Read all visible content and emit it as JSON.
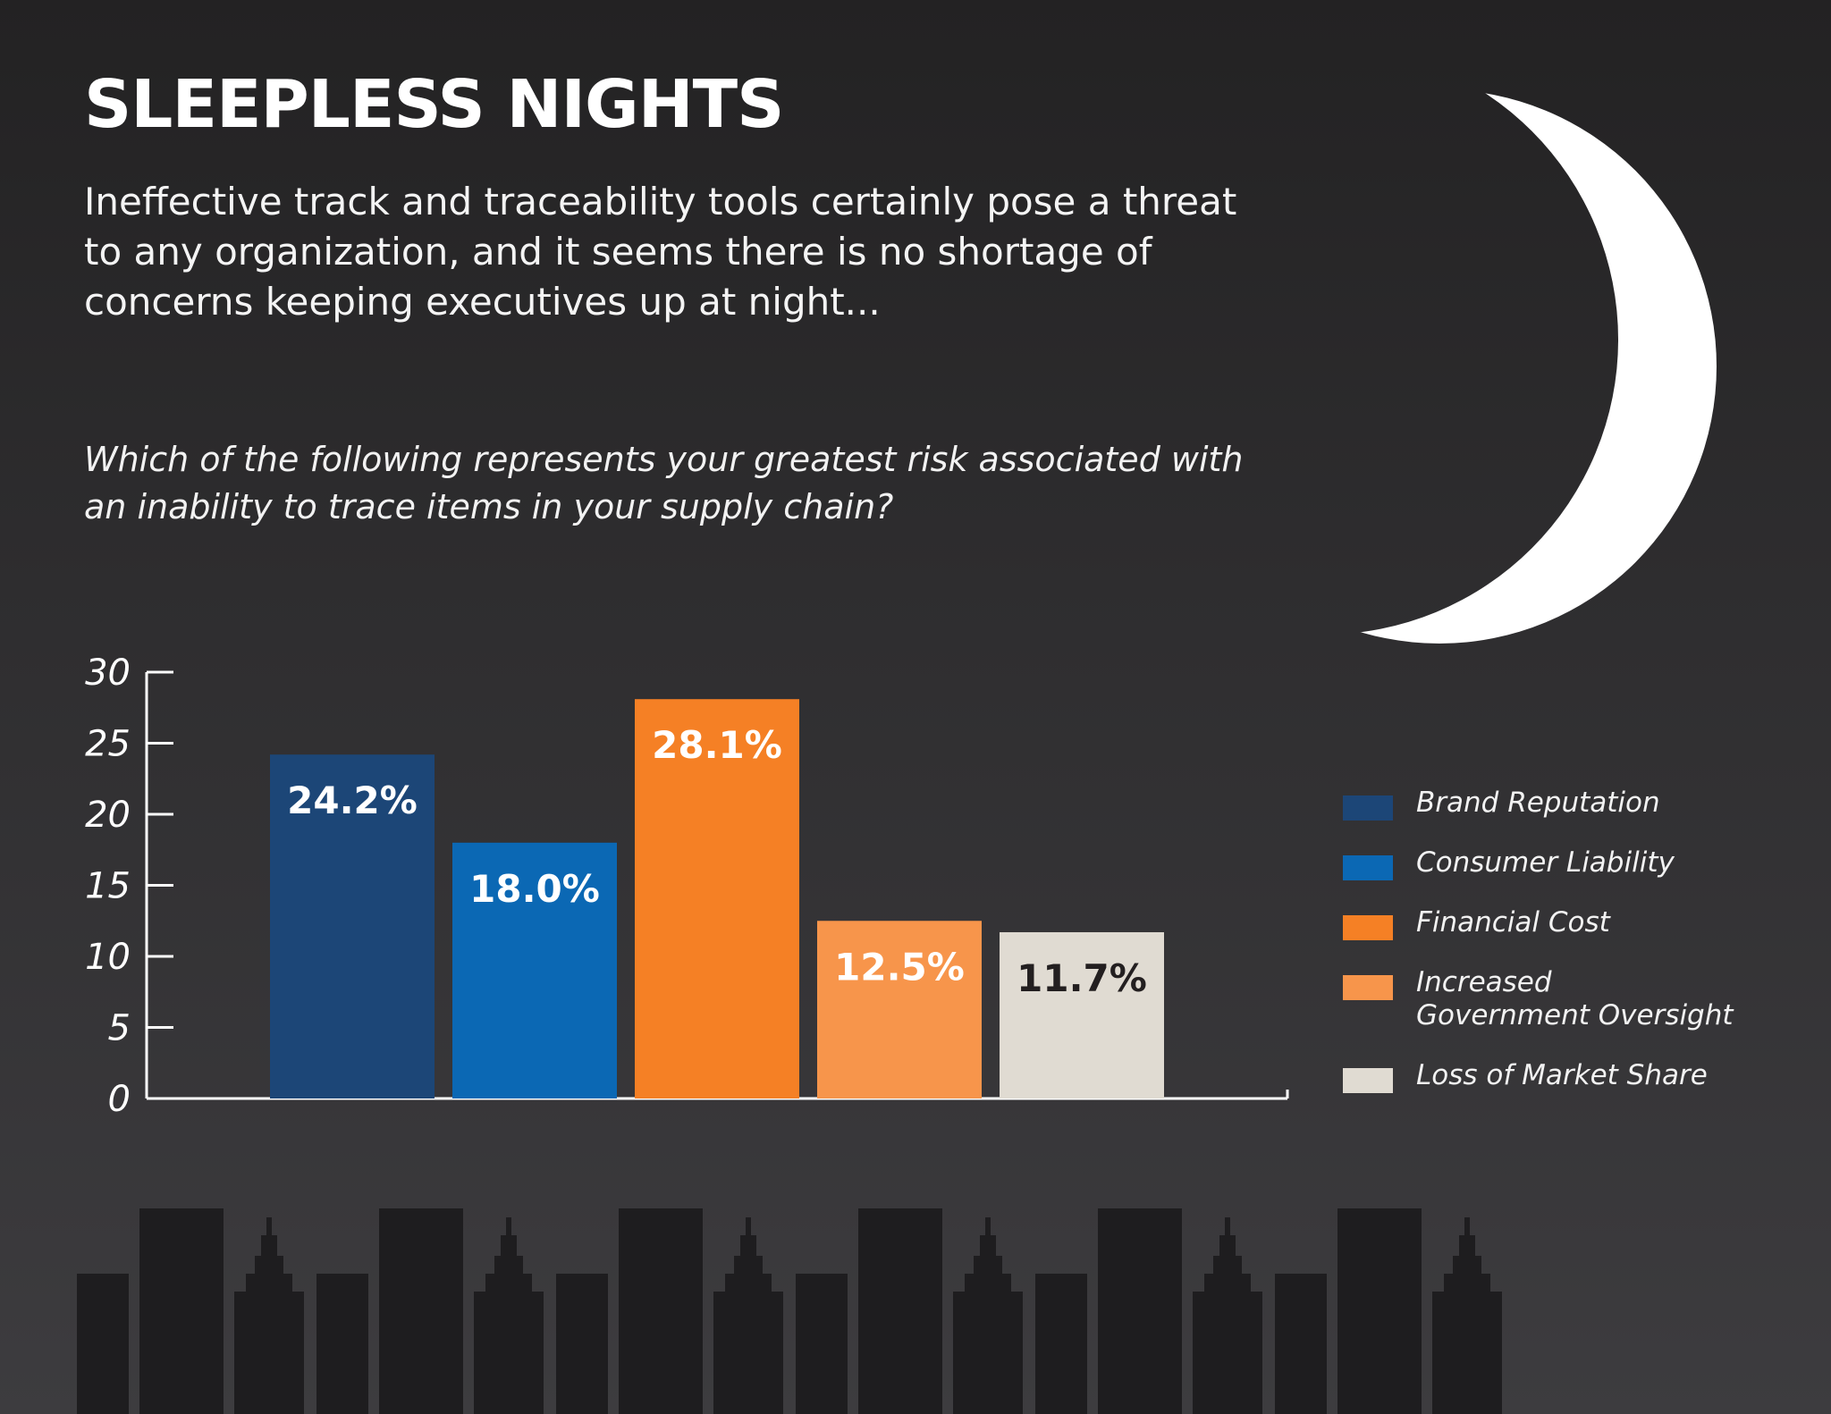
{
  "title": "SLEEPLESS NIGHTS",
  "intro": "Ineffective track and traceability tools certainly pose a threat to any organization, and it seems there is no shortage of concerns keeping executives up at night...",
  "question": "Which of the following represents your greatest risk associated with an inability to trace items in your supply chain?",
  "chart_data": {
    "type": "bar",
    "categories": [
      "Brand Reputation",
      "Consumer Liability",
      "Financial Cost",
      "Increased\nGovernment Oversight",
      "Loss of Market Share"
    ],
    "values": [
      24.2,
      18.0,
      28.1,
      12.5,
      11.7
    ],
    "value_labels": [
      "24.2%",
      "18.0%",
      "28.1%",
      "12.5%",
      "11.7%"
    ],
    "colors": [
      "#1c4677",
      "#0b68b4",
      "#f58025",
      "#f7954b",
      "#e0dbd2"
    ],
    "label_colors": [
      "#ffffff",
      "#ffffff",
      "#ffffff",
      "#ffffff",
      "#231f20"
    ],
    "yticks": [
      0,
      5,
      10,
      15,
      20,
      25,
      30
    ],
    "ylim": [
      0,
      30
    ],
    "grid": false,
    "legend_position": "right"
  },
  "legend": [
    {
      "label": "Brand Reputation",
      "color": "#1c4677"
    },
    {
      "label": "Consumer Liability",
      "color": "#0b68b4"
    },
    {
      "label": "Financial Cost",
      "color": "#f58025"
    },
    {
      "label": "Increased\nGovernment Oversight",
      "color": "#f7954b"
    },
    {
      "label": "Loss of Market Share",
      "color": "#e0dbd2"
    }
  ],
  "colors": {
    "background_top": "#232223",
    "background_bottom": "#3d3c3f",
    "moon": "#ffffff",
    "skyline": "#1e1d1f",
    "axis": "#ffffff"
  },
  "icons": {
    "moon": "crescent-moon-icon",
    "skyline": "city-skyline-icon"
  }
}
